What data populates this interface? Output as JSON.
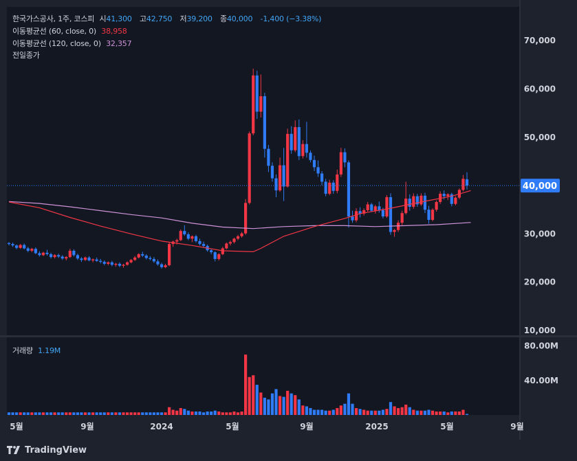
{
  "legend": {
    "symbol": "한국가스공사, 1주, 코스피",
    "open_label": "시",
    "open": "41,300",
    "high_label": "고",
    "high": "42,750",
    "low_label": "저",
    "low": "39,200",
    "close_label": "종",
    "close": "40,000",
    "change": "-1,400 (−3.38%)",
    "ma60_label": "이동평균선 (60, close, 0)",
    "ma60_value": "38,958",
    "ma120_label": "이동평균선 (120, close, 0)",
    "ma120_value": "32,357",
    "prev_close_label": "전일종가",
    "volume_label": "거래량",
    "volume_value": "1.19M"
  },
  "price_axis": {
    "ticks": [
      10000,
      20000,
      30000,
      40000,
      50000,
      60000,
      70000
    ],
    "tick_labels": [
      "10,000",
      "20,000",
      "30,000",
      "40,000",
      "50,000",
      "60,000",
      "70,000"
    ],
    "last_price": 40000,
    "last_price_label": "40,000"
  },
  "volume_axis": {
    "ticks": [
      40,
      80
    ],
    "tick_labels": [
      "40.00M",
      "80.00M"
    ]
  },
  "time_axis": {
    "labels": [
      "5월",
      "9월",
      "2024",
      "5월",
      "9월",
      "2025",
      "5월",
      "9월"
    ]
  },
  "footer": {
    "brand": "TradingView"
  },
  "colors": {
    "up": "#f23645",
    "down": "#2f7cf6",
    "ma60": "#f23645",
    "ma120": "#ce93d8",
    "background": "#1e222d",
    "pane": "#131722"
  },
  "chart_data": {
    "type": "candlestick",
    "interval": "1 week",
    "ylim": [
      9000,
      77000
    ],
    "volume_ylim": [
      0,
      90
    ],
    "volume_unit": "M",
    "candles": [
      [
        28100,
        28300,
        27600,
        27900,
        3
      ],
      [
        27900,
        28200,
        27300,
        27600,
        3
      ],
      [
        27600,
        27800,
        26800,
        27100,
        3
      ],
      [
        27100,
        27900,
        26900,
        27700,
        3
      ],
      [
        27700,
        28000,
        26800,
        27000,
        3
      ],
      [
        27000,
        27300,
        26200,
        26500,
        3
      ],
      [
        26500,
        27100,
        26200,
        26900,
        3
      ],
      [
        26900,
        27200,
        25800,
        26000,
        3
      ],
      [
        26000,
        26400,
        25300,
        25600,
        3
      ],
      [
        25600,
        26300,
        25400,
        26100,
        3
      ],
      [
        26100,
        26700,
        25500,
        25800,
        3
      ],
      [
        25800,
        26100,
        24900,
        25200,
        3
      ],
      [
        25200,
        25800,
        24900,
        25600,
        3
      ],
      [
        25600,
        25900,
        25000,
        25300,
        3
      ],
      [
        25300,
        25600,
        24600,
        24900,
        3
      ],
      [
        24900,
        25400,
        24500,
        25200,
        3
      ],
      [
        25200,
        26900,
        25000,
        26500,
        3
      ],
      [
        26500,
        26800,
        25300,
        25600,
        3
      ],
      [
        25600,
        25900,
        24600,
        24900,
        3
      ],
      [
        24900,
        25200,
        24200,
        24600,
        3
      ],
      [
        24600,
        25300,
        24400,
        25100,
        3
      ],
      [
        25100,
        25400,
        24300,
        24500,
        3
      ],
      [
        24500,
        24900,
        24100,
        24700,
        3
      ],
      [
        24700,
        25100,
        24200,
        24400,
        3
      ],
      [
        24400,
        24800,
        23900,
        24200,
        3
      ],
      [
        24200,
        24500,
        23500,
        23800,
        3
      ],
      [
        23800,
        24300,
        23500,
        24100,
        3
      ],
      [
        24100,
        24400,
        23300,
        23600,
        3
      ],
      [
        23600,
        24000,
        23200,
        23800,
        3
      ],
      [
        23800,
        24100,
        23100,
        23400,
        3
      ],
      [
        23400,
        23800,
        23000,
        23600,
        3
      ],
      [
        23600,
        24300,
        23400,
        24100,
        3
      ],
      [
        24100,
        24800,
        23900,
        24600,
        3
      ],
      [
        24600,
        25400,
        24400,
        25100,
        3
      ],
      [
        25100,
        26000,
        24900,
        25800,
        3
      ],
      [
        25800,
        26300,
        25200,
        25500,
        3
      ],
      [
        25500,
        25800,
        24700,
        25000,
        3
      ],
      [
        25000,
        25400,
        24500,
        24800,
        3
      ],
      [
        24800,
        25200,
        24000,
        24300,
        3
      ],
      [
        24300,
        24700,
        23400,
        23700,
        3
      ],
      [
        23700,
        24000,
        22800,
        23100,
        3
      ],
      [
        23100,
        23800,
        22900,
        23500,
        3
      ],
      [
        23500,
        28200,
        23300,
        27900,
        9
      ],
      [
        27900,
        28600,
        27300,
        28400,
        6
      ],
      [
        28400,
        29000,
        27800,
        28700,
        5
      ],
      [
        28700,
        30900,
        28500,
        30600,
        8
      ],
      [
        30600,
        31800,
        29600,
        29900,
        7
      ],
      [
        29900,
        30300,
        28700,
        29000,
        5
      ],
      [
        29000,
        29700,
        28300,
        29500,
        4
      ],
      [
        29500,
        29800,
        28200,
        28500,
        4
      ],
      [
        28500,
        29000,
        27600,
        27900,
        4
      ],
      [
        27900,
        28400,
        27100,
        27500,
        3
      ],
      [
        27500,
        27800,
        26300,
        26600,
        4
      ],
      [
        26600,
        27000,
        25800,
        26200,
        4
      ],
      [
        26200,
        26400,
        24300,
        24800,
        5
      ],
      [
        24800,
        26000,
        24500,
        25800,
        4
      ],
      [
        25800,
        27300,
        25600,
        27000,
        3
      ],
      [
        27000,
        28200,
        26800,
        28000,
        3
      ],
      [
        28000,
        28600,
        27600,
        28300,
        3
      ],
      [
        28300,
        29200,
        28000,
        29000,
        4
      ],
      [
        29000,
        29800,
        28700,
        29500,
        3
      ],
      [
        29500,
        30400,
        29200,
        30100,
        4
      ],
      [
        30100,
        37200,
        29800,
        36400,
        70
      ],
      [
        36400,
        51200,
        36100,
        50800,
        44
      ],
      [
        50800,
        64200,
        50400,
        62800,
        46
      ],
      [
        62800,
        63800,
        53800,
        55300,
        35
      ],
      [
        55300,
        63000,
        54100,
        58500,
        26
      ],
      [
        58500,
        59200,
        45800,
        47600,
        20
      ],
      [
        47600,
        48400,
        42800,
        44100,
        18
      ],
      [
        44100,
        44800,
        40800,
        41500,
        25
      ],
      [
        41500,
        42300,
        37600,
        39000,
        30
      ],
      [
        39000,
        45800,
        38700,
        44200,
        22
      ],
      [
        44200,
        47800,
        36800,
        39800,
        21
      ],
      [
        39800,
        51800,
        39600,
        50700,
        28
      ],
      [
        50700,
        52300,
        46600,
        47300,
        25
      ],
      [
        47300,
        53500,
        46900,
        52100,
        23
      ],
      [
        52100,
        53700,
        45300,
        46100,
        18
      ],
      [
        46100,
        49400,
        45600,
        48600,
        11
      ],
      [
        48600,
        53200,
        45800,
        46800,
        10
      ],
      [
        46800,
        47300,
        44800,
        45300,
        8
      ],
      [
        45300,
        46200,
        43000,
        43800,
        6
      ],
      [
        43800,
        45200,
        41800,
        42500,
        6
      ],
      [
        42500,
        43000,
        40100,
        40800,
        6
      ],
      [
        40800,
        41400,
        37800,
        38300,
        5
      ],
      [
        38300,
        41200,
        38000,
        40600,
        5
      ],
      [
        40600,
        41100,
        38300,
        38900,
        6
      ],
      [
        38900,
        43300,
        38400,
        42300,
        8
      ],
      [
        42300,
        47800,
        41800,
        46900,
        11
      ],
      [
        46900,
        47700,
        43800,
        44800,
        13
      ],
      [
        44800,
        45200,
        31300,
        33600,
        25
      ],
      [
        33600,
        34800,
        32300,
        32800,
        13
      ],
      [
        32800,
        35300,
        32400,
        34700,
        8
      ],
      [
        34700,
        35500,
        33400,
        34200,
        7
      ],
      [
        34200,
        35300,
        33800,
        34900,
        6
      ],
      [
        34900,
        36600,
        34600,
        36100,
        5
      ],
      [
        36100,
        36400,
        34500,
        34800,
        5
      ],
      [
        34800,
        36000,
        34200,
        35700,
        5
      ],
      [
        35700,
        36700,
        34400,
        34900,
        5
      ],
      [
        34900,
        35400,
        33200,
        33600,
        6
      ],
      [
        33600,
        38000,
        33300,
        37600,
        7
      ],
      [
        37600,
        38400,
        29800,
        30400,
        15
      ],
      [
        30400,
        31000,
        29400,
        30800,
        10
      ],
      [
        30800,
        32800,
        30400,
        32300,
        8
      ],
      [
        32300,
        34800,
        31800,
        34300,
        9
      ],
      [
        34300,
        40800,
        34000,
        37300,
        12
      ],
      [
        37300,
        38200,
        34800,
        35600,
        9
      ],
      [
        35600,
        38400,
        35200,
        37800,
        6
      ],
      [
        37800,
        38300,
        35600,
        36100,
        5
      ],
      [
        36100,
        38400,
        35800,
        37900,
        5
      ],
      [
        37900,
        38500,
        34300,
        35000,
        5
      ],
      [
        35000,
        35800,
        32100,
        32900,
        6
      ],
      [
        32900,
        35300,
        32600,
        35000,
        5
      ],
      [
        35000,
        36900,
        34600,
        36600,
        4
      ],
      [
        36600,
        38800,
        36200,
        38300,
        4
      ],
      [
        38300,
        39000,
        37100,
        37800,
        4
      ],
      [
        37800,
        38400,
        37000,
        38200,
        3
      ],
      [
        38200,
        38500,
        35700,
        36200,
        4
      ],
      [
        36200,
        37800,
        35900,
        37500,
        4
      ],
      [
        37500,
        39400,
        37200,
        39100,
        4
      ],
      [
        39100,
        42200,
        38800,
        41400,
        6
      ],
      [
        41300,
        42750,
        39200,
        40000,
        1.19
      ]
    ],
    "ma60": [
      [
        0,
        36600
      ],
      [
        8,
        35400
      ],
      [
        16,
        33400
      ],
      [
        24,
        31600
      ],
      [
        32,
        30000
      ],
      [
        40,
        28500
      ],
      [
        48,
        27600
      ],
      [
        56,
        26500
      ],
      [
        64,
        26300
      ],
      [
        66,
        27000
      ],
      [
        72,
        29500
      ],
      [
        80,
        31500
      ],
      [
        88,
        33200
      ],
      [
        92,
        34200
      ],
      [
        100,
        35300
      ],
      [
        108,
        36600
      ],
      [
        116,
        37800
      ],
      [
        121,
        38958
      ]
    ],
    "ma120": [
      [
        0,
        36700
      ],
      [
        8,
        36300
      ],
      [
        16,
        35600
      ],
      [
        24,
        34800
      ],
      [
        32,
        34000
      ],
      [
        40,
        33300
      ],
      [
        48,
        32200
      ],
      [
        56,
        31400
      ],
      [
        64,
        31100
      ],
      [
        72,
        31500
      ],
      [
        80,
        31700
      ],
      [
        88,
        31700
      ],
      [
        96,
        31500
      ],
      [
        104,
        31700
      ],
      [
        112,
        31900
      ],
      [
        121,
        32357
      ]
    ]
  }
}
